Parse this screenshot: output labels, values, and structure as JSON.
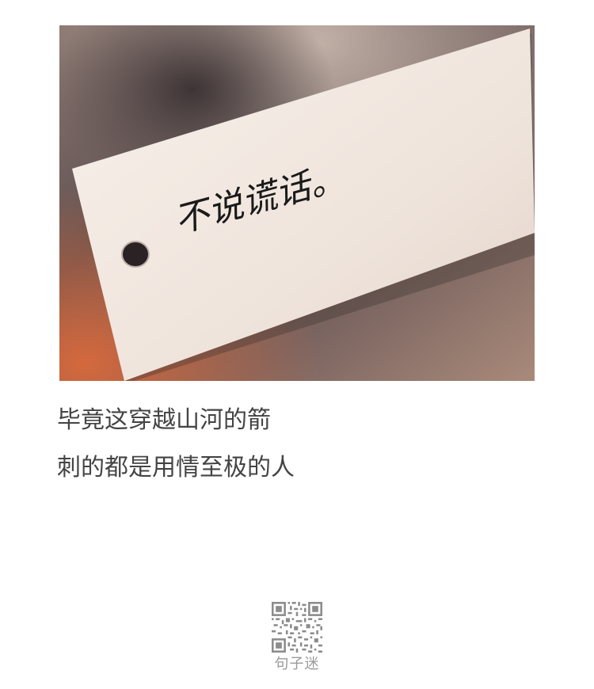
{
  "photo": {
    "tag_writing": "不说谎话。",
    "colors": {
      "background_warm": "#c98a6a",
      "background_dark": "#4a3e3c",
      "tag_paper": "#f4ece6",
      "ink": "#1a1a1a"
    }
  },
  "quote": {
    "line1": "毕竟这穿越山河的箭",
    "line2": "刺的都是用情至极的人"
  },
  "footer": {
    "qr_icon": "qr-code-icon",
    "brand": "句子迷"
  }
}
